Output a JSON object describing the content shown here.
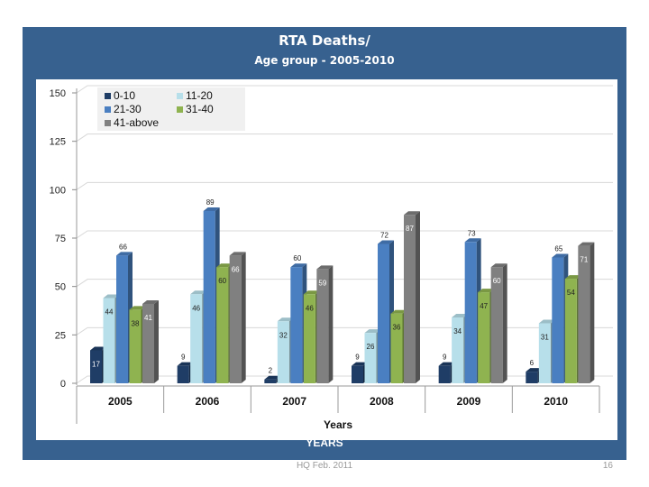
{
  "slide": {
    "title_line1": "RTA Deaths/",
    "title_line2": "Age group  - 2005-2010",
    "bottom_label": "YEARS",
    "footer": "HQ Feb. 2011",
    "page_number": "16"
  },
  "chart_data": {
    "type": "bar",
    "title": "RTA Deaths/ Age group - 2005-2010",
    "xlabel": "Years",
    "ylabel": "",
    "categories": [
      "2005",
      "2006",
      "2007",
      "2008",
      "2009",
      "2010"
    ],
    "ylim": [
      0,
      150
    ],
    "yticks": [
      "0",
      "25",
      "50",
      "75",
      "100",
      "125",
      "150"
    ],
    "grid": true,
    "legend_position": "top-left",
    "series": [
      {
        "name": "0-10",
        "color": "#1f3d66",
        "values": [
          17,
          9,
          2,
          9,
          9,
          6
        ]
      },
      {
        "name": "11-20",
        "color": "#b7dfea",
        "values": [
          44,
          46,
          32,
          26,
          34,
          31
        ]
      },
      {
        "name": "21-30",
        "color": "#4a7fc1",
        "values": [
          66,
          89,
          60,
          72,
          73,
          65
        ]
      },
      {
        "name": "31-40",
        "color": "#8fb350",
        "values": [
          38,
          60,
          46,
          36,
          47,
          54
        ]
      },
      {
        "name": "41-above",
        "color": "#808080",
        "values": [
          41,
          66,
          59,
          87,
          60,
          71
        ]
      }
    ]
  }
}
